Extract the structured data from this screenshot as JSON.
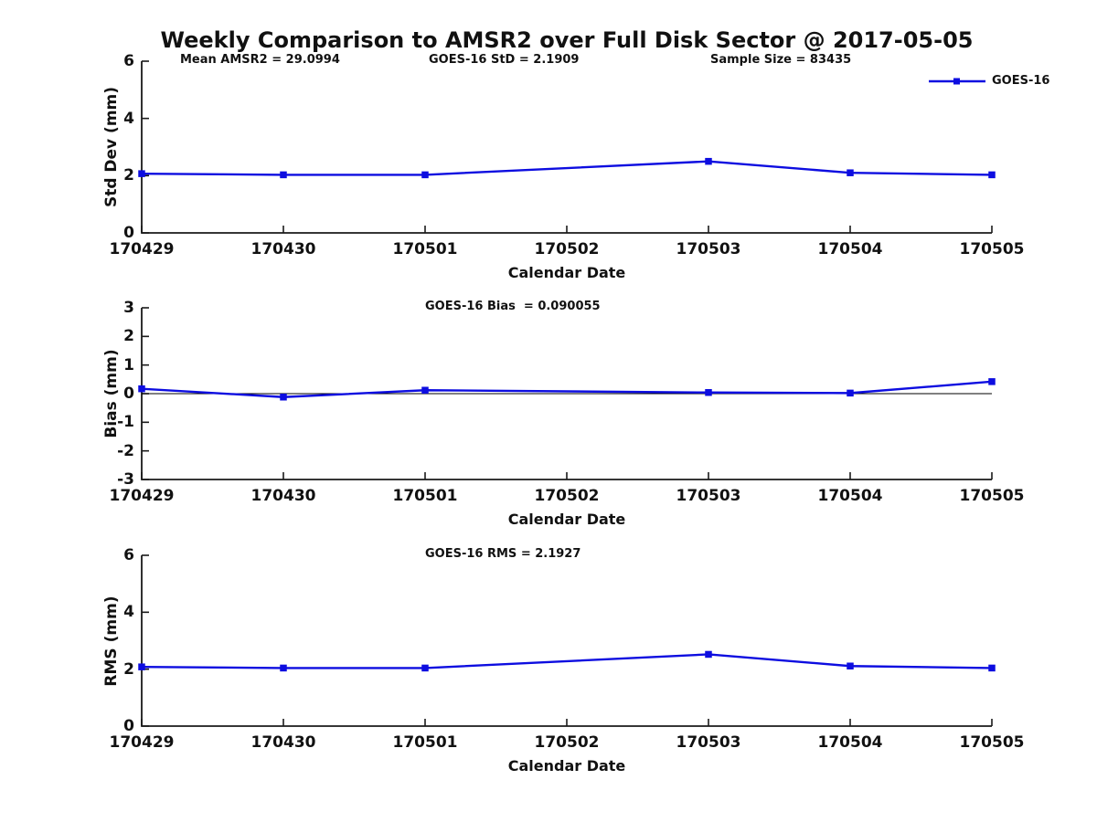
{
  "title": "Weekly Comparison to AMSR2 over Full Disk Sector @ 2017-05-05",
  "legend": {
    "label": "GOES-16",
    "position": "top-right",
    "marker": "filled-square"
  },
  "colors": {
    "line": "#0d0de0",
    "axis": "#1a1a1a",
    "text": "#111111",
    "zero_line": "#000000",
    "background": "#ffffff"
  },
  "chart_data": [
    {
      "type": "line",
      "ylabel": "Std Dev (mm)",
      "xlabel": "Calendar Date",
      "x_tick_labels": [
        "170429",
        "170430",
        "170501",
        "170502",
        "170503",
        "170504",
        "170505"
      ],
      "yticks": [
        0,
        2,
        4,
        6
      ],
      "ylim": [
        0,
        6
      ],
      "grid": false,
      "legend_position": "top-right",
      "annotations": [
        "Mean AMSR2 = 29.0994",
        "GOES-16 StD = 2.1909",
        "Sample Size = 83435"
      ],
      "series": [
        {
          "name": "GOES-16",
          "x": [
            "170429",
            "170430",
            "170501",
            "170503",
            "170504",
            "170505"
          ],
          "values": [
            2.07,
            2.03,
            2.03,
            2.5,
            2.1,
            2.03
          ]
        }
      ]
    },
    {
      "type": "line",
      "ylabel": "Bias (mm)",
      "xlabel": "Calendar Date",
      "x_tick_labels": [
        "170429",
        "170430",
        "170501",
        "170502",
        "170503",
        "170504",
        "170505"
      ],
      "yticks": [
        -3,
        -2,
        -1,
        0,
        1,
        2,
        3
      ],
      "ylim": [
        -3,
        3
      ],
      "grid": false,
      "zero_line": true,
      "annotations": [
        "GOES-16 Bias  = 0.090055"
      ],
      "series": [
        {
          "name": "GOES-16",
          "x": [
            "170429",
            "170430",
            "170501",
            "170503",
            "170504",
            "170505"
          ],
          "values": [
            0.17,
            -0.12,
            0.12,
            0.04,
            0.02,
            0.42
          ]
        }
      ]
    },
    {
      "type": "line",
      "ylabel": "RMS (mm)",
      "xlabel": "Calendar Date",
      "x_tick_labels": [
        "170429",
        "170430",
        "170501",
        "170502",
        "170503",
        "170504",
        "170505"
      ],
      "yticks": [
        0,
        2,
        4,
        6
      ],
      "ylim": [
        0,
        6
      ],
      "grid": false,
      "annotations": [
        "GOES-16 RMS = 2.1927"
      ],
      "series": [
        {
          "name": "GOES-16",
          "x": [
            "170429",
            "170430",
            "170501",
            "170503",
            "170504",
            "170505"
          ],
          "values": [
            2.08,
            2.04,
            2.04,
            2.52,
            2.11,
            2.04
          ]
        }
      ]
    }
  ]
}
